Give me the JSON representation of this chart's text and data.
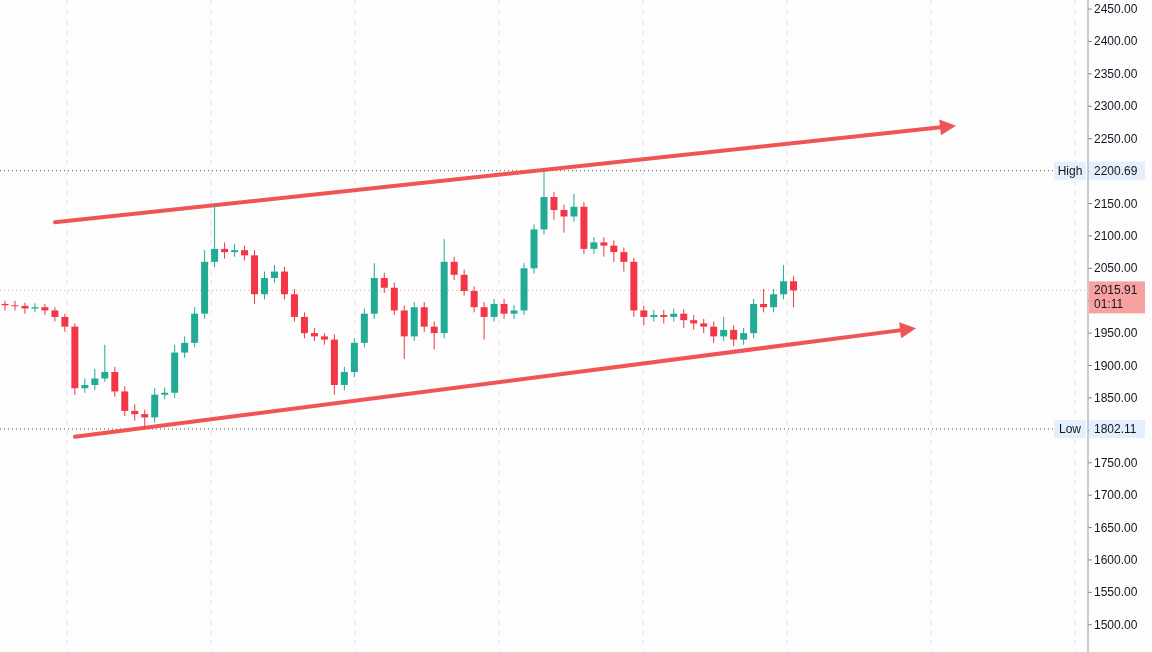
{
  "chart_data": {
    "type": "candlestick",
    "categories": [
      null,
      null,
      null,
      null,
      null,
      null,
      null,
      null,
      null,
      null,
      null,
      null,
      null,
      null,
      null,
      null,
      null,
      null,
      null,
      null,
      null,
      null,
      null,
      null,
      null,
      null,
      null,
      null,
      null,
      null,
      null,
      null,
      null,
      null,
      null,
      null,
      null,
      null,
      null,
      null,
      null,
      null,
      null,
      null,
      null,
      null,
      null,
      null,
      null,
      null,
      null,
      null,
      null,
      null,
      null,
      null,
      null,
      null,
      null,
      null,
      null,
      null,
      null,
      null,
      null,
      null,
      null,
      null,
      null,
      null,
      null,
      null,
      null,
      null,
      null,
      null,
      null,
      null,
      null,
      null,
      null,
      null,
      null,
      null,
      null,
      null,
      null,
      null,
      null,
      null,
      null,
      null,
      null,
      null,
      null,
      null,
      null,
      null,
      null,
      null,
      null,
      null,
      null,
      null,
      null,
      null,
      null,
      null,
      null
    ],
    "ohlc": [
      [
        1995,
        2000,
        1985,
        1993
      ],
      [
        1993,
        2000,
        1985,
        1992
      ],
      [
        1992,
        1997,
        1980,
        1988
      ],
      [
        1988,
        1996,
        1982,
        1990
      ],
      [
        1990,
        1995,
        1978,
        1985
      ],
      [
        1985,
        1990,
        1968,
        1975
      ],
      [
        1975,
        1980,
        1952,
        1960
      ],
      [
        1960,
        1965,
        1855,
        1865
      ],
      [
        1865,
        1880,
        1858,
        1870
      ],
      [
        1870,
        1895,
        1862,
        1880
      ],
      [
        1880,
        1932,
        1875,
        1890
      ],
      [
        1890,
        1898,
        1852,
        1860
      ],
      [
        1860,
        1868,
        1822,
        1830
      ],
      [
        1830,
        1840,
        1815,
        1825
      ],
      [
        1825,
        1832,
        1802.11,
        1820
      ],
      [
        1820,
        1865,
        1812,
        1855
      ],
      [
        1855,
        1866,
        1848,
        1858
      ],
      [
        1858,
        1932,
        1850,
        1920
      ],
      [
        1920,
        1945,
        1912,
        1935
      ],
      [
        1935,
        1990,
        1928,
        1980
      ],
      [
        1980,
        2078,
        1972,
        2060
      ],
      [
        2060,
        2150,
        2052,
        2080
      ],
      [
        2080,
        2090,
        2065,
        2075
      ],
      [
        2075,
        2088,
        2068,
        2078
      ],
      [
        2078,
        2085,
        2062,
        2070
      ],
      [
        2070,
        2078,
        1995,
        2010
      ],
      [
        2010,
        2045,
        2002,
        2035
      ],
      [
        2035,
        2055,
        2028,
        2045
      ],
      [
        2045,
        2052,
        2002,
        2010
      ],
      [
        2010,
        2018,
        1968,
        1975
      ],
      [
        1975,
        1982,
        1942,
        1950
      ],
      [
        1950,
        1958,
        1938,
        1945
      ],
      [
        1945,
        1950,
        1932,
        1940
      ],
      [
        1940,
        1948,
        1855,
        1870
      ],
      [
        1870,
        1898,
        1862,
        1890
      ],
      [
        1890,
        1942,
        1882,
        1935
      ],
      [
        1935,
        1988,
        1928,
        1980
      ],
      [
        1980,
        2058,
        1972,
        2035
      ],
      [
        2035,
        2043,
        2012,
        2020
      ],
      [
        2020,
        2028,
        1978,
        1985
      ],
      [
        1985,
        1993,
        1910,
        1945
      ],
      [
        1945,
        1998,
        1938,
        1990
      ],
      [
        1990,
        1998,
        1952,
        1960
      ],
      [
        1960,
        1968,
        1925,
        1950
      ],
      [
        1950,
        2095,
        1942,
        2060
      ],
      [
        2060,
        2068,
        2032,
        2040
      ],
      [
        2040,
        2048,
        2008,
        2015
      ],
      [
        2015,
        2022,
        1982,
        1990
      ],
      [
        1990,
        1998,
        1940,
        1975
      ],
      [
        1975,
        2003,
        1968,
        1995
      ],
      [
        1995,
        2003,
        1972,
        1980
      ],
      [
        1980,
        1993,
        1972,
        1985
      ],
      [
        1985,
        2058,
        1978,
        2050
      ],
      [
        2050,
        2118,
        2042,
        2110
      ],
      [
        2110,
        2200.69,
        2102,
        2160
      ],
      [
        2160,
        2168,
        2125,
        2140
      ],
      [
        2140,
        2148,
        2105,
        2130
      ],
      [
        2130,
        2165,
        2122,
        2145
      ],
      [
        2145,
        2152,
        2072,
        2080
      ],
      [
        2080,
        2098,
        2072,
        2090
      ],
      [
        2090,
        2098,
        2068,
        2085
      ],
      [
        2085,
        2093,
        2060,
        2075
      ],
      [
        2075,
        2082,
        2045,
        2060
      ],
      [
        2060,
        2066,
        1975,
        1985
      ],
      [
        1985,
        1992,
        1962,
        1975
      ],
      [
        1975,
        1986,
        1968,
        1978
      ],
      [
        1978,
        1986,
        1965,
        1975
      ],
      [
        1975,
        1988,
        1968,
        1980
      ],
      [
        1980,
        1987,
        1958,
        1970
      ],
      [
        1970,
        1978,
        1955,
        1965
      ],
      [
        1965,
        1972,
        1950,
        1960
      ],
      [
        1960,
        1968,
        1935,
        1945
      ],
      [
        1945,
        1975,
        1938,
        1955
      ],
      [
        1955,
        1962,
        1930,
        1940
      ],
      [
        1940,
        1958,
        1932,
        1950
      ],
      [
        1950,
        2003,
        1942,
        1995
      ],
      [
        1995,
        2018,
        1982,
        1990
      ],
      [
        1990,
        2018,
        1982,
        2010
      ],
      [
        2010,
        2055,
        2002,
        2030
      ],
      [
        2030,
        2038,
        1990,
        2015.91
      ],
      null,
      null,
      null,
      null,
      null,
      null,
      null,
      null,
      null,
      null,
      null,
      null,
      null,
      null,
      null,
      null,
      null,
      null,
      null,
      null,
      null,
      null,
      null,
      null,
      null,
      null,
      null,
      null,
      null
    ],
    "series": [
      {
        "type": "line",
        "values": [
          null,
          null,
          null,
          null,
          null,
          2121,
          null,
          null,
          null,
          null,
          null,
          null,
          null,
          null,
          null,
          null,
          null,
          null,
          null,
          null,
          null,
          null,
          null,
          null,
          null,
          null,
          null,
          null,
          null,
          null,
          null,
          null,
          null,
          null,
          null,
          null,
          null,
          null,
          null,
          null,
          null,
          null,
          null,
          null,
          null,
          null,
          null,
          null,
          null,
          null,
          null,
          null,
          null,
          null,
          null,
          null,
          null,
          null,
          null,
          null,
          null,
          null,
          null,
          null,
          null,
          null,
          null,
          null,
          null,
          null,
          null,
          null,
          null,
          null,
          null,
          null,
          null,
          null,
          null,
          null,
          null,
          null,
          null,
          null,
          null,
          null,
          null,
          null,
          null,
          null,
          null,
          null,
          null,
          null,
          2268,
          null,
          null,
          null,
          null,
          null,
          null,
          null,
          null,
          null,
          null,
          null,
          null,
          null,
          null
        ],
        "color": "#f05454"
      },
      {
        "type": "line",
        "values": [
          null,
          null,
          null,
          null,
          null,
          null,
          null,
          1790,
          null,
          null,
          null,
          null,
          null,
          null,
          null,
          null,
          null,
          null,
          null,
          null,
          null,
          null,
          null,
          null,
          null,
          null,
          null,
          null,
          null,
          null,
          null,
          null,
          null,
          null,
          null,
          null,
          null,
          null,
          null,
          null,
          null,
          null,
          null,
          null,
          null,
          null,
          null,
          null,
          null,
          null,
          null,
          null,
          null,
          null,
          null,
          null,
          null,
          null,
          null,
          null,
          null,
          null,
          null,
          null,
          null,
          null,
          null,
          null,
          null,
          null,
          null,
          null,
          null,
          null,
          null,
          null,
          null,
          null,
          null,
          null,
          null,
          null,
          null,
          null,
          null,
          null,
          null,
          null,
          null,
          null,
          1955,
          null,
          null,
          null,
          null,
          null,
          null,
          null,
          null,
          null,
          null,
          null,
          null,
          null,
          null,
          null,
          null,
          null,
          null
        ],
        "color": "#f05454"
      }
    ],
    "ylim": [
      1458,
      2464
    ],
    "yticks": [
      {
        "value": 1500,
        "label": "1500.00"
      },
      {
        "value": 1550,
        "label": "1550.00"
      },
      {
        "value": 1600,
        "label": "1600.00"
      },
      {
        "value": 1650,
        "label": "1650.00"
      },
      {
        "value": 1700,
        "label": "1700.00"
      },
      {
        "value": 1750,
        "label": "1750.00"
      },
      {
        "value": 1800,
        "label": null
      },
      {
        "value": 1850,
        "label": "1850.00"
      },
      {
        "value": 1900,
        "label": "1900.00"
      },
      {
        "value": 1950,
        "label": "1950.00"
      },
      {
        "value": 2000,
        "label": null
      },
      {
        "value": 2050,
        "label": "2050.00"
      },
      {
        "value": 2100,
        "label": "2100.00"
      },
      {
        "value": 2150,
        "label": "2150.00"
      },
      {
        "value": 2200,
        "label": null
      },
      {
        "value": 2250,
        "label": "2250.00"
      },
      {
        "value": 2300,
        "label": "2300.00"
      },
      {
        "value": 2350,
        "label": "2350.00"
      },
      {
        "value": 2400,
        "label": "2400.00"
      },
      {
        "value": 2450,
        "label": "2450.00"
      }
    ],
    "ref_lines": [
      {
        "axis": "y",
        "value": 2200.69,
        "label": "High",
        "color": "#555555",
        "line_style": "dotted"
      },
      {
        "axis": "y",
        "value": 1802.11,
        "label": "Low",
        "color": "#555555",
        "line_style": "dotted"
      },
      {
        "axis": "y",
        "value": 2015.91,
        "color": "#f7a1a1",
        "line_style": "dotted"
      }
    ],
    "annotations": [
      "2200.69",
      "1802.11",
      "2015.91",
      "01:11"
    ]
  }
}
